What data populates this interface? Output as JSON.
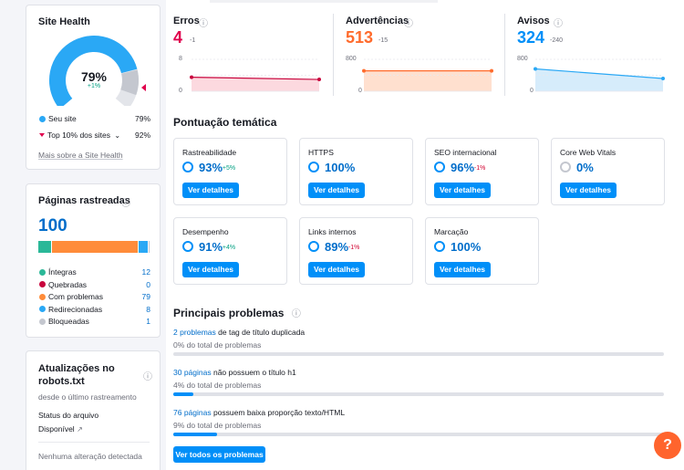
{
  "site_health": {
    "title": "Site Health",
    "percent": "79%",
    "change": "+1%",
    "gauge_value": 0.79,
    "top_value": 0.92,
    "legend": [
      {
        "label": "Seu site",
        "value": "79%"
      },
      {
        "label": "Top 10% dos sites",
        "value": "92%"
      }
    ],
    "link": "Mais sobre a Site Health"
  },
  "crawled": {
    "title": "Páginas rastreadas",
    "info_icon": "info-icon",
    "total": "100",
    "items": [
      {
        "label": "Íntegras",
        "value": "12",
        "count": 12,
        "color": "#2bb898"
      },
      {
        "label": "Quebradas",
        "value": "0",
        "count": 0,
        "color": "#c8053d"
      },
      {
        "label": "Com problemas",
        "value": "79",
        "count": 79,
        "color": "#ff8c3a"
      },
      {
        "label": "Redirecionadas",
        "value": "8",
        "count": 8,
        "color": "#2aa8f5"
      },
      {
        "label": "Bloqueadas",
        "value": "1",
        "count": 1,
        "color": "#c4c7cf"
      }
    ]
  },
  "robots": {
    "title": "Atualizações no robots.txt",
    "since": "desde o último rastreamento",
    "status_label": "Status do arquivo",
    "status_value": "Disponível",
    "no_change": "Nenhuma alteração detectada"
  },
  "metrics": [
    {
      "title": "Erros",
      "value": "4",
      "delta": "-1",
      "color": "#e0004d",
      "axis_top": "8",
      "axis_bottom": "0",
      "start": 0.44,
      "end": 0.37,
      "line": "#c8053d",
      "fill": "#fcd9df"
    },
    {
      "title": "Advertências",
      "value": "513",
      "delta": "-15",
      "color": "#ff6b2c",
      "axis_top": "800",
      "axis_bottom": "0",
      "start": 0.64,
      "end": 0.64,
      "line": "#ff6b2c",
      "fill": "#ffe0cf"
    },
    {
      "title": "Avisos",
      "value": "324",
      "delta": "-240",
      "color": "#008ff8",
      "axis_top": "800",
      "axis_bottom": "0",
      "start": 0.7,
      "end": 0.4,
      "line": "#2aa8f5",
      "fill": "#d6ecfb"
    }
  ],
  "thematic": {
    "title": "Pontuação temática",
    "button": "Ver detalhes",
    "cards": [
      {
        "name": "Rastreabilidade",
        "pct": "93%",
        "delta": "+5%",
        "delta_color": "#009f81"
      },
      {
        "name": "HTTPS",
        "pct": "100%",
        "delta": "",
        "delta_color": "#009f81"
      },
      {
        "name": "SEO internacional",
        "pct": "96%",
        "delta": "-1%",
        "delta_color": "#d1002f"
      },
      {
        "name": "Core Web Vitals",
        "pct": "0%",
        "delta": "",
        "delta_color": "#009f81"
      },
      {
        "name": "Desempenho",
        "pct": "91%",
        "delta": "+4%",
        "delta_color": "#009f81"
      },
      {
        "name": "Links internos",
        "pct": "89%",
        "delta": "-1%",
        "delta_color": "#d1002f"
      },
      {
        "name": "Marcação",
        "pct": "100%",
        "delta": "",
        "delta_color": "#009f81"
      }
    ]
  },
  "issues": {
    "title": "Principais problemas",
    "items": [
      {
        "link": "2 problemas",
        "text": "de tag de título duplicada",
        "sub": "0% do total de problemas",
        "fraction": 0.0
      },
      {
        "link": "30 páginas",
        "text": "não possuem o título h1",
        "sub": "4% do total de problemas",
        "fraction": 0.04
      },
      {
        "link": "76 páginas",
        "text": "possuem baixa proporção texto/HTML",
        "sub": "9% do total de problemas",
        "fraction": 0.09
      }
    ],
    "view_all": "Ver todos os problemas"
  },
  "help": "?"
}
